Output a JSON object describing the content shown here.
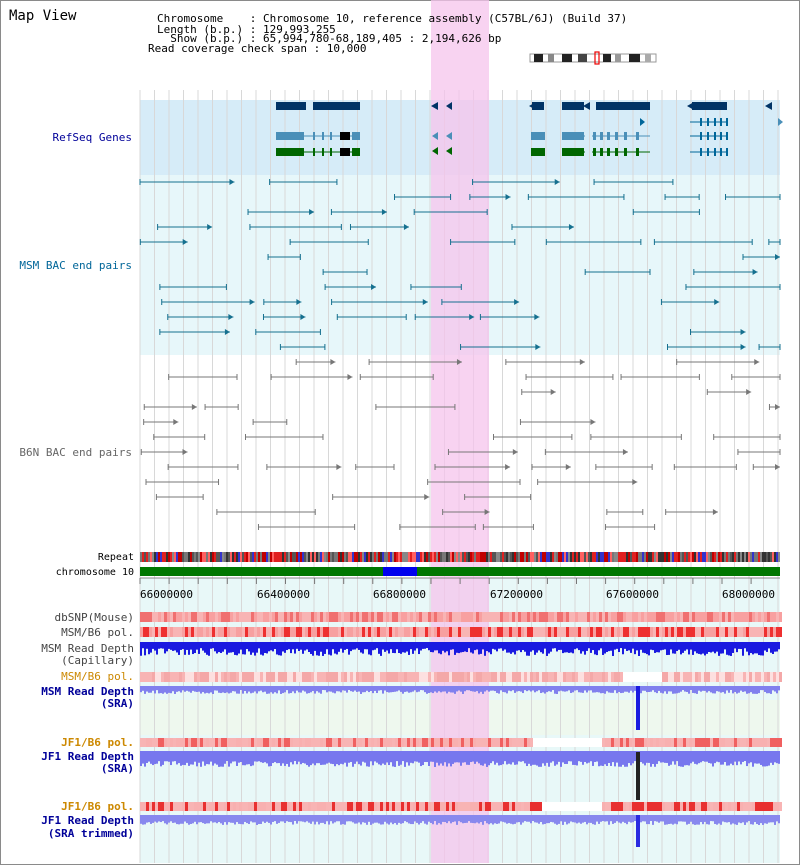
{
  "title": "Map View",
  "info": {
    "line1": "Chromosome    : Chromosome 10, reference assembly (C57BL/6J) (Build 37)",
    "line2": "Length (b.p.) : 129,993,255",
    "line3": "  Show (b.p.) : 65,994,780-68,189,405 : 2,194,626 bp",
    "line4": "Read coverage check span : 10,000"
  },
  "tracks": {
    "refseq": "RefSeq Genes",
    "msm_bac": "MSM BAC end pairs",
    "b6n_bac": "B6N BAC end pairs",
    "repeat": "Repeat",
    "chromosome": "chromosome 10",
    "dbsnp": "dbSNP(Mouse)",
    "msm_b6_pol": "MSM/B6 pol.",
    "msm_depth_cap_1": "MSM Read Depth",
    "msm_depth_cap_2": "(Capillary)",
    "msm_b6_pol_2": "MSM/B6 pol.",
    "msm_depth_sra_1": "MSM Read Depth",
    "msm_depth_sra_2": "(SRA)",
    "jf1_b6_pol": "JF1/B6 pol.",
    "jf1_depth_sra_1": "JF1 Read Depth",
    "jf1_depth_sra_2": "(SRA)",
    "jf1_b6_pol_2": "JF1/B6 pol.",
    "jf1_depth_trim_1": "JF1 Read Depth",
    "jf1_depth_trim_2": "(SRA trimmed)"
  },
  "axis": {
    "ticks": [
      "66000000",
      "66400000",
      "66800000",
      "67200000",
      "67600000",
      "68000000"
    ]
  },
  "colors": {
    "refseq_label": "#000099",
    "msm_label": "#006699",
    "b6n_label": "#666666",
    "pol_label": "#cc8800",
    "depth_label": "#000099",
    "highlight": "#f9d7f0",
    "chromosome": "#007700",
    "chromosome_band": "#0000ee"
  }
}
